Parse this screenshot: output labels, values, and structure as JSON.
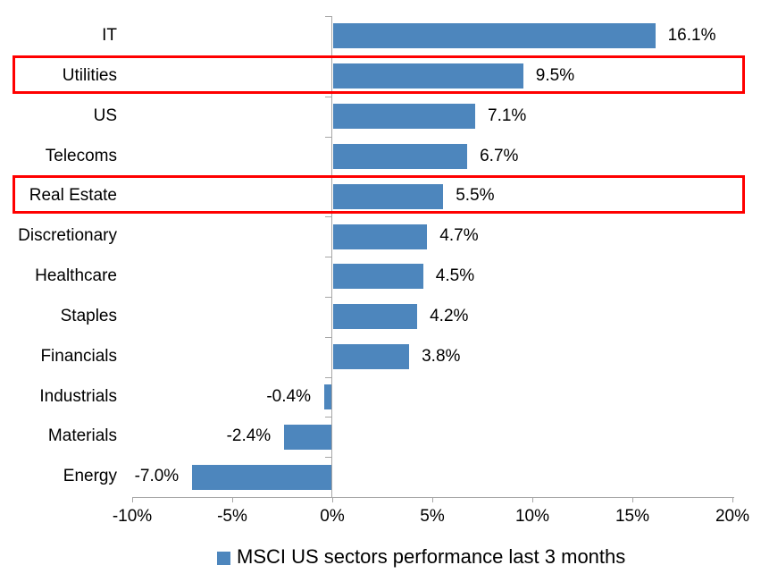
{
  "chart_data": {
    "type": "bar",
    "orientation": "horizontal",
    "title": "",
    "categories": [
      "IT",
      "Utilities",
      "US",
      "Telecoms",
      "Real Estate",
      "Discretionary",
      "Healthcare",
      "Staples",
      "Financials",
      "Industrials",
      "Materials",
      "Energy"
    ],
    "values": [
      16.1,
      9.5,
      7.1,
      6.7,
      5.5,
      4.7,
      4.5,
      4.2,
      3.8,
      -0.4,
      -2.4,
      -7.0
    ],
    "data_labels": [
      "16.1%",
      "9.5%",
      "7.1%",
      "6.7%",
      "5.5%",
      "4.7%",
      "4.5%",
      "4.2%",
      "3.8%",
      "-0.4%",
      "-2.4%",
      "-7.0%"
    ],
    "xlim": [
      -10,
      20
    ],
    "x_tick_values": [
      -10,
      -5,
      0,
      5,
      10,
      15,
      20
    ],
    "x_tick_labels": [
      "-10%",
      "-5%",
      "0%",
      "5%",
      "10%",
      "15%",
      "20%"
    ],
    "grid": "off",
    "legend": "MSCI US sectors performance last 3 months",
    "legend_position": "bottom-center",
    "bar_color": "#4D86BD",
    "axis_color": "#A6A6A6",
    "text_color": "#000000",
    "highlighted_categories": [
      "Utilities",
      "Real Estate"
    ],
    "highlight_color": "#FF0000"
  }
}
